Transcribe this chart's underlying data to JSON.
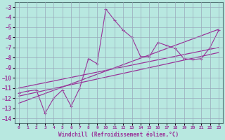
{
  "xlabel": "Windchill (Refroidissement éolien,°C)",
  "xlim": [
    -0.5,
    23.5
  ],
  "ylim": [
    -14.5,
    -2.5
  ],
  "yticks": [
    -14,
    -13,
    -12,
    -11,
    -10,
    -9,
    -8,
    -7,
    -6,
    -5,
    -4,
    -3
  ],
  "xticks": [
    0,
    1,
    2,
    3,
    4,
    5,
    6,
    7,
    8,
    9,
    10,
    11,
    12,
    13,
    14,
    15,
    16,
    17,
    18,
    19,
    20,
    21,
    22,
    23
  ],
  "bg_color": "#b8e8e0",
  "grid_color": "#99aabb",
  "line_color": "#993399",
  "series1_x": [
    0,
    1,
    2,
    3,
    4,
    5,
    6,
    7,
    8,
    9,
    10,
    11,
    12,
    13,
    14,
    15,
    16,
    17,
    18,
    19,
    20,
    21,
    22,
    23
  ],
  "series1_y": [
    -11.5,
    -11.3,
    -11.2,
    -13.5,
    -12.0,
    -11.2,
    -12.8,
    -11.0,
    -8.1,
    -8.6,
    -3.2,
    -4.3,
    -5.3,
    -6.0,
    -7.9,
    -7.9,
    -6.5,
    -6.8,
    -7.1,
    -8.1,
    -8.2,
    -8.1,
    -7.0,
    -5.3
  ],
  "series2_x": [
    0,
    23
  ],
  "series2_y": [
    -11.8,
    -7.5
  ],
  "series3_x": [
    0,
    23
  ],
  "series3_y": [
    -11.0,
    -7.0
  ],
  "series4_x": [
    0,
    23
  ],
  "series4_y": [
    -12.5,
    -5.2
  ]
}
